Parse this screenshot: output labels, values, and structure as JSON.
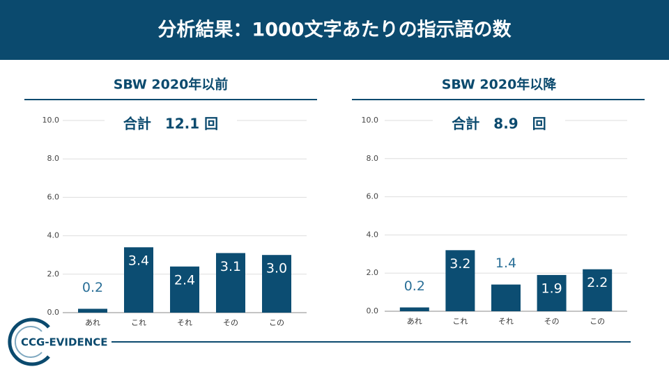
{
  "title": "分析結果：1000文字あたりの指示語の数",
  "logo": "CCG-EVIDENCE",
  "chart_data": [
    {
      "type": "bar",
      "title": "SBW 2020年以前",
      "subtitle": "合計　12.1 回",
      "categories": [
        "あれ",
        "これ",
        "それ",
        "その",
        "この"
      ],
      "values": [
        0.2,
        3.4,
        2.4,
        3.1,
        3.0
      ],
      "value_labels": [
        "0.2",
        "3.4",
        "2.4",
        "3.1",
        "3.0"
      ],
      "color": "#0c4d72",
      "ylim": [
        0,
        10
      ],
      "yticks": [
        {
          "value": 0,
          "label": "0.0"
        },
        {
          "value": 2,
          "label": "2.0"
        },
        {
          "value": 4,
          "label": "4.0"
        },
        {
          "value": 6,
          "label": "6.0"
        },
        {
          "value": 8,
          "label": "8.0"
        },
        {
          "value": 10,
          "label": "10.0"
        }
      ],
      "grid": true
    },
    {
      "type": "bar",
      "title": "SBW 2020年以降",
      "subtitle": "合計　8.9　回",
      "categories": [
        "あれ",
        "これ",
        "それ",
        "その",
        "この"
      ],
      "values": [
        0.2,
        3.2,
        1.4,
        1.9,
        2.2
      ],
      "color": "#0c4d72",
      "ylim": [
        0,
        10
      ],
      "yticks": [
        {
          "value": 0,
          "label": "0.0"
        },
        {
          "value": 2,
          "label": "2.0"
        },
        {
          "value": 4,
          "label": "4.0"
        },
        {
          "value": 6,
          "label": "6.0"
        },
        {
          "value": 8,
          "label": "8.0"
        },
        {
          "value": 10,
          "label": "10.0"
        }
      ],
      "grid": true
    }
  ]
}
